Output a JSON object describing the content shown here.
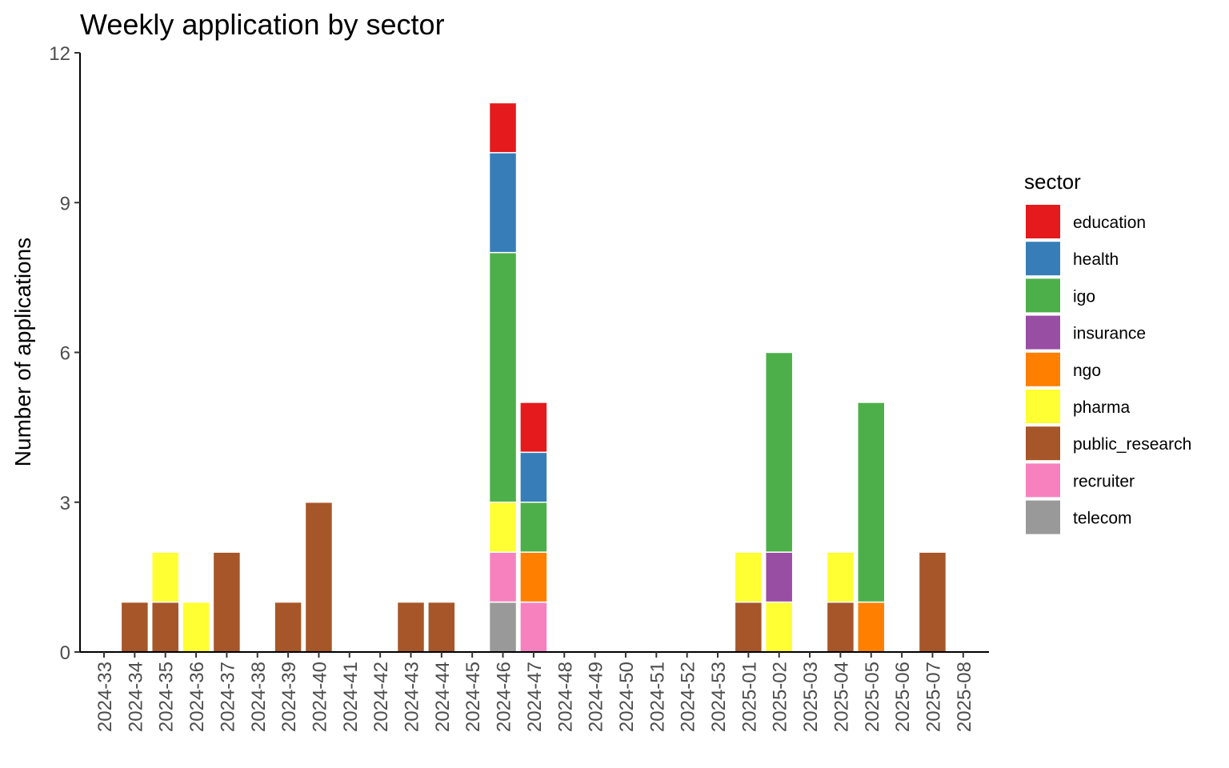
{
  "chart_data": {
    "type": "bar",
    "stacked": true,
    "title": "Weekly application by sector",
    "xlabel": "",
    "ylabel": "Number of applications",
    "ylim": [
      0,
      12
    ],
    "yticks": [
      "0",
      "3",
      "6",
      "9",
      "12"
    ],
    "grid": false,
    "legend_title": "sector",
    "legend_position": "right",
    "categories": [
      "2024-33",
      "2024-34",
      "2024-35",
      "2024-36",
      "2024-37",
      "2024-38",
      "2024-39",
      "2024-40",
      "2024-41",
      "2024-42",
      "2024-43",
      "2024-44",
      "2024-45",
      "2024-46",
      "2024-47",
      "2024-48",
      "2024-49",
      "2024-50",
      "2024-51",
      "2024-52",
      "2024-53",
      "2025-01",
      "2025-02",
      "2025-03",
      "2025-04",
      "2025-05",
      "2025-06",
      "2025-07",
      "2025-08"
    ],
    "series": [
      {
        "name": "education",
        "color": "#E41A1C",
        "values": [
          0,
          0,
          0,
          0,
          0,
          0,
          0,
          0,
          0,
          0,
          0,
          0,
          0,
          1,
          1,
          0,
          0,
          0,
          0,
          0,
          0,
          0,
          0,
          0,
          0,
          0,
          0,
          0,
          0
        ]
      },
      {
        "name": "health",
        "color": "#377EB8",
        "values": [
          0,
          0,
          0,
          0,
          0,
          0,
          0,
          0,
          0,
          0,
          0,
          0,
          0,
          2,
          1,
          0,
          0,
          0,
          0,
          0,
          0,
          0,
          0,
          0,
          0,
          0,
          0,
          0,
          0
        ]
      },
      {
        "name": "igo",
        "color": "#4DAF4A",
        "values": [
          0,
          0,
          0,
          0,
          0,
          0,
          0,
          0,
          0,
          0,
          0,
          0,
          0,
          5,
          1,
          0,
          0,
          0,
          0,
          0,
          0,
          0,
          4,
          0,
          0,
          4,
          0,
          0,
          0
        ]
      },
      {
        "name": "insurance",
        "color": "#984EA3",
        "values": [
          0,
          0,
          0,
          0,
          0,
          0,
          0,
          0,
          0,
          0,
          0,
          0,
          0,
          0,
          0,
          0,
          0,
          0,
          0,
          0,
          0,
          0,
          1,
          0,
          0,
          0,
          0,
          0,
          0
        ]
      },
      {
        "name": "ngo",
        "color": "#FF7F00",
        "values": [
          0,
          0,
          0,
          0,
          0,
          0,
          0,
          0,
          0,
          0,
          0,
          0,
          0,
          0,
          1,
          0,
          0,
          0,
          0,
          0,
          0,
          0,
          0,
          0,
          0,
          1,
          0,
          0,
          0
        ]
      },
      {
        "name": "pharma",
        "color": "#FFFF33",
        "values": [
          0,
          0,
          1,
          1,
          0,
          0,
          0,
          0,
          0,
          0,
          0,
          0,
          0,
          1,
          0,
          0,
          0,
          0,
          0,
          0,
          0,
          1,
          1,
          0,
          1,
          0,
          0,
          0,
          0
        ]
      },
      {
        "name": "public_research",
        "color": "#A65628",
        "values": [
          0,
          1,
          1,
          0,
          2,
          0,
          1,
          3,
          0,
          0,
          1,
          1,
          0,
          0,
          0,
          0,
          0,
          0,
          0,
          0,
          0,
          1,
          0,
          0,
          1,
          0,
          0,
          2,
          0
        ]
      },
      {
        "name": "recruiter",
        "color": "#F781BF",
        "values": [
          0,
          0,
          0,
          0,
          0,
          0,
          0,
          0,
          0,
          0,
          0,
          0,
          0,
          1,
          1,
          0,
          0,
          0,
          0,
          0,
          0,
          0,
          0,
          0,
          0,
          0,
          0,
          0,
          0
        ]
      },
      {
        "name": "telecom",
        "color": "#999999",
        "values": [
          0,
          0,
          0,
          0,
          0,
          0,
          0,
          0,
          0,
          0,
          0,
          0,
          0,
          1,
          0,
          0,
          0,
          0,
          0,
          0,
          0,
          0,
          0,
          0,
          0,
          0,
          0,
          0,
          0
        ]
      }
    ]
  }
}
